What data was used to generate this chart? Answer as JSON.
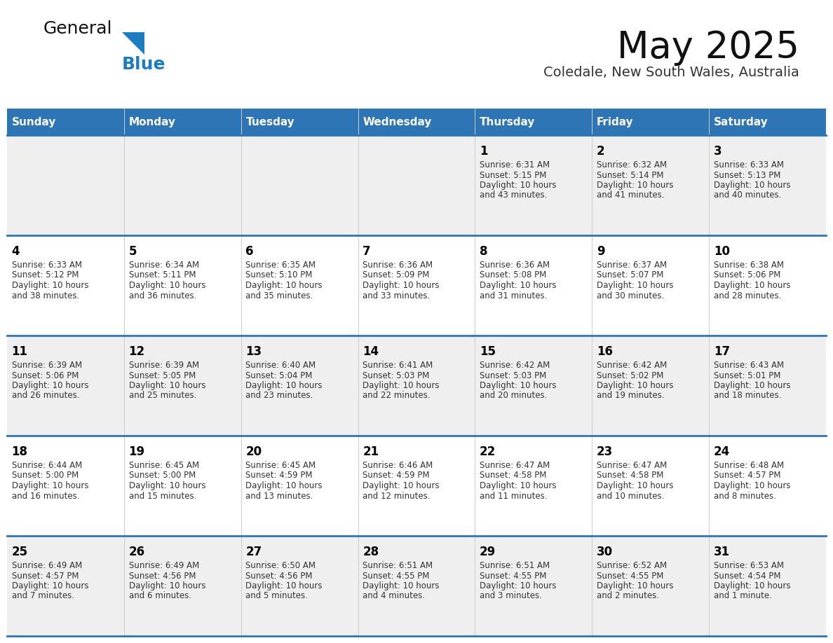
{
  "title": "May 2025",
  "subtitle": "Coledale, New South Wales, Australia",
  "days_of_week": [
    "Sunday",
    "Monday",
    "Tuesday",
    "Wednesday",
    "Thursday",
    "Friday",
    "Saturday"
  ],
  "header_bg": "#2E75B6",
  "header_text": "#FFFFFF",
  "row_bg_odd": "#EFEFEF",
  "row_bg_even": "#FFFFFF",
  "row_separator": "#2E75B6",
  "day_number_color": "#000000",
  "cell_text_color": "#333333",
  "title_color": "#111111",
  "subtitle_color": "#333333",
  "logo_text_color": "#111111",
  "logo_blue_color": "#1E7CC0",
  "calendar": [
    [
      null,
      null,
      null,
      null,
      {
        "day": 1,
        "sunrise": "6:31 AM",
        "sunset": "5:15 PM",
        "daylight": "10 hours and 43 minutes."
      },
      {
        "day": 2,
        "sunrise": "6:32 AM",
        "sunset": "5:14 PM",
        "daylight": "10 hours and 41 minutes."
      },
      {
        "day": 3,
        "sunrise": "6:33 AM",
        "sunset": "5:13 PM",
        "daylight": "10 hours and 40 minutes."
      }
    ],
    [
      {
        "day": 4,
        "sunrise": "6:33 AM",
        "sunset": "5:12 PM",
        "daylight": "10 hours and 38 minutes."
      },
      {
        "day": 5,
        "sunrise": "6:34 AM",
        "sunset": "5:11 PM",
        "daylight": "10 hours and 36 minutes."
      },
      {
        "day": 6,
        "sunrise": "6:35 AM",
        "sunset": "5:10 PM",
        "daylight": "10 hours and 35 minutes."
      },
      {
        "day": 7,
        "sunrise": "6:36 AM",
        "sunset": "5:09 PM",
        "daylight": "10 hours and 33 minutes."
      },
      {
        "day": 8,
        "sunrise": "6:36 AM",
        "sunset": "5:08 PM",
        "daylight": "10 hours and 31 minutes."
      },
      {
        "day": 9,
        "sunrise": "6:37 AM",
        "sunset": "5:07 PM",
        "daylight": "10 hours and 30 minutes."
      },
      {
        "day": 10,
        "sunrise": "6:38 AM",
        "sunset": "5:06 PM",
        "daylight": "10 hours and 28 minutes."
      }
    ],
    [
      {
        "day": 11,
        "sunrise": "6:39 AM",
        "sunset": "5:06 PM",
        "daylight": "10 hours and 26 minutes."
      },
      {
        "day": 12,
        "sunrise": "6:39 AM",
        "sunset": "5:05 PM",
        "daylight": "10 hours and 25 minutes."
      },
      {
        "day": 13,
        "sunrise": "6:40 AM",
        "sunset": "5:04 PM",
        "daylight": "10 hours and 23 minutes."
      },
      {
        "day": 14,
        "sunrise": "6:41 AM",
        "sunset": "5:03 PM",
        "daylight": "10 hours and 22 minutes."
      },
      {
        "day": 15,
        "sunrise": "6:42 AM",
        "sunset": "5:03 PM",
        "daylight": "10 hours and 20 minutes."
      },
      {
        "day": 16,
        "sunrise": "6:42 AM",
        "sunset": "5:02 PM",
        "daylight": "10 hours and 19 minutes."
      },
      {
        "day": 17,
        "sunrise": "6:43 AM",
        "sunset": "5:01 PM",
        "daylight": "10 hours and 18 minutes."
      }
    ],
    [
      {
        "day": 18,
        "sunrise": "6:44 AM",
        "sunset": "5:00 PM",
        "daylight": "10 hours and 16 minutes."
      },
      {
        "day": 19,
        "sunrise": "6:45 AM",
        "sunset": "5:00 PM",
        "daylight": "10 hours and 15 minutes."
      },
      {
        "day": 20,
        "sunrise": "6:45 AM",
        "sunset": "4:59 PM",
        "daylight": "10 hours and 13 minutes."
      },
      {
        "day": 21,
        "sunrise": "6:46 AM",
        "sunset": "4:59 PM",
        "daylight": "10 hours and 12 minutes."
      },
      {
        "day": 22,
        "sunrise": "6:47 AM",
        "sunset": "4:58 PM",
        "daylight": "10 hours and 11 minutes."
      },
      {
        "day": 23,
        "sunrise": "6:47 AM",
        "sunset": "4:58 PM",
        "daylight": "10 hours and 10 minutes."
      },
      {
        "day": 24,
        "sunrise": "6:48 AM",
        "sunset": "4:57 PM",
        "daylight": "10 hours and 8 minutes."
      }
    ],
    [
      {
        "day": 25,
        "sunrise": "6:49 AM",
        "sunset": "4:57 PM",
        "daylight": "10 hours and 7 minutes."
      },
      {
        "day": 26,
        "sunrise": "6:49 AM",
        "sunset": "4:56 PM",
        "daylight": "10 hours and 6 minutes."
      },
      {
        "day": 27,
        "sunrise": "6:50 AM",
        "sunset": "4:56 PM",
        "daylight": "10 hours and 5 minutes."
      },
      {
        "day": 28,
        "sunrise": "6:51 AM",
        "sunset": "4:55 PM",
        "daylight": "10 hours and 4 minutes."
      },
      {
        "day": 29,
        "sunrise": "6:51 AM",
        "sunset": "4:55 PM",
        "daylight": "10 hours and 3 minutes."
      },
      {
        "day": 30,
        "sunrise": "6:52 AM",
        "sunset": "4:55 PM",
        "daylight": "10 hours and 2 minutes."
      },
      {
        "day": 31,
        "sunrise": "6:53 AM",
        "sunset": "4:54 PM",
        "daylight": "10 hours and 1 minute."
      }
    ]
  ]
}
